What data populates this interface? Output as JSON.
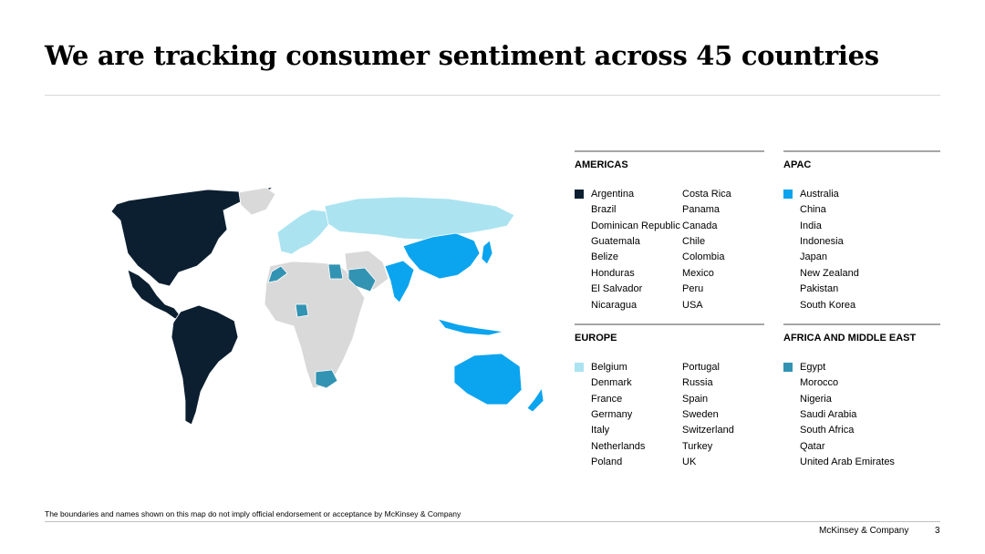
{
  "title": "We are tracking consumer sentiment across 45 countries",
  "colors": {
    "americas": "#0c1f30",
    "europe": "#abe4f0",
    "apac": "#0ba4ee",
    "africa_me": "#3393b3",
    "other": "#d9d9d9"
  },
  "regions": {
    "americas": {
      "title": "AMERICAS",
      "col1": [
        "Argentina",
        "Brazil",
        "Dominican Republic",
        "Guatemala",
        "Belize",
        "Honduras",
        "El Salvador",
        "Nicaragua"
      ],
      "col2": [
        "Costa Rica",
        "Panama",
        "Canada",
        "Chile",
        "Colombia",
        "Mexico",
        "Peru",
        "USA"
      ]
    },
    "apac": {
      "title": "APAC",
      "col1": [
        "Australia",
        "China",
        "India",
        "Indonesia",
        "Japan",
        "New Zealand",
        "Pakistan",
        "South Korea"
      ]
    },
    "europe": {
      "title": "EUROPE",
      "col1": [
        "Belgium",
        "Denmark",
        "France",
        "Germany",
        "Italy",
        "Netherlands",
        "Poland"
      ],
      "col2": [
        "Portugal",
        "Russia",
        "Spain",
        "Sweden",
        "Switzerland",
        "Turkey",
        "UK"
      ]
    },
    "africa_me": {
      "title": "AFRICA AND MIDDLE EAST",
      "col1": [
        "Egypt",
        "Morocco",
        "Nigeria",
        "Saudi Arabia",
        "South Africa",
        "Qatar",
        "United Arab Emirates"
      ]
    }
  },
  "footnote": "The boundaries and names shown on this map do not imply official endorsement or acceptance by McKinsey & Company",
  "footer": {
    "company": "McKinsey & Company",
    "page": "3"
  }
}
